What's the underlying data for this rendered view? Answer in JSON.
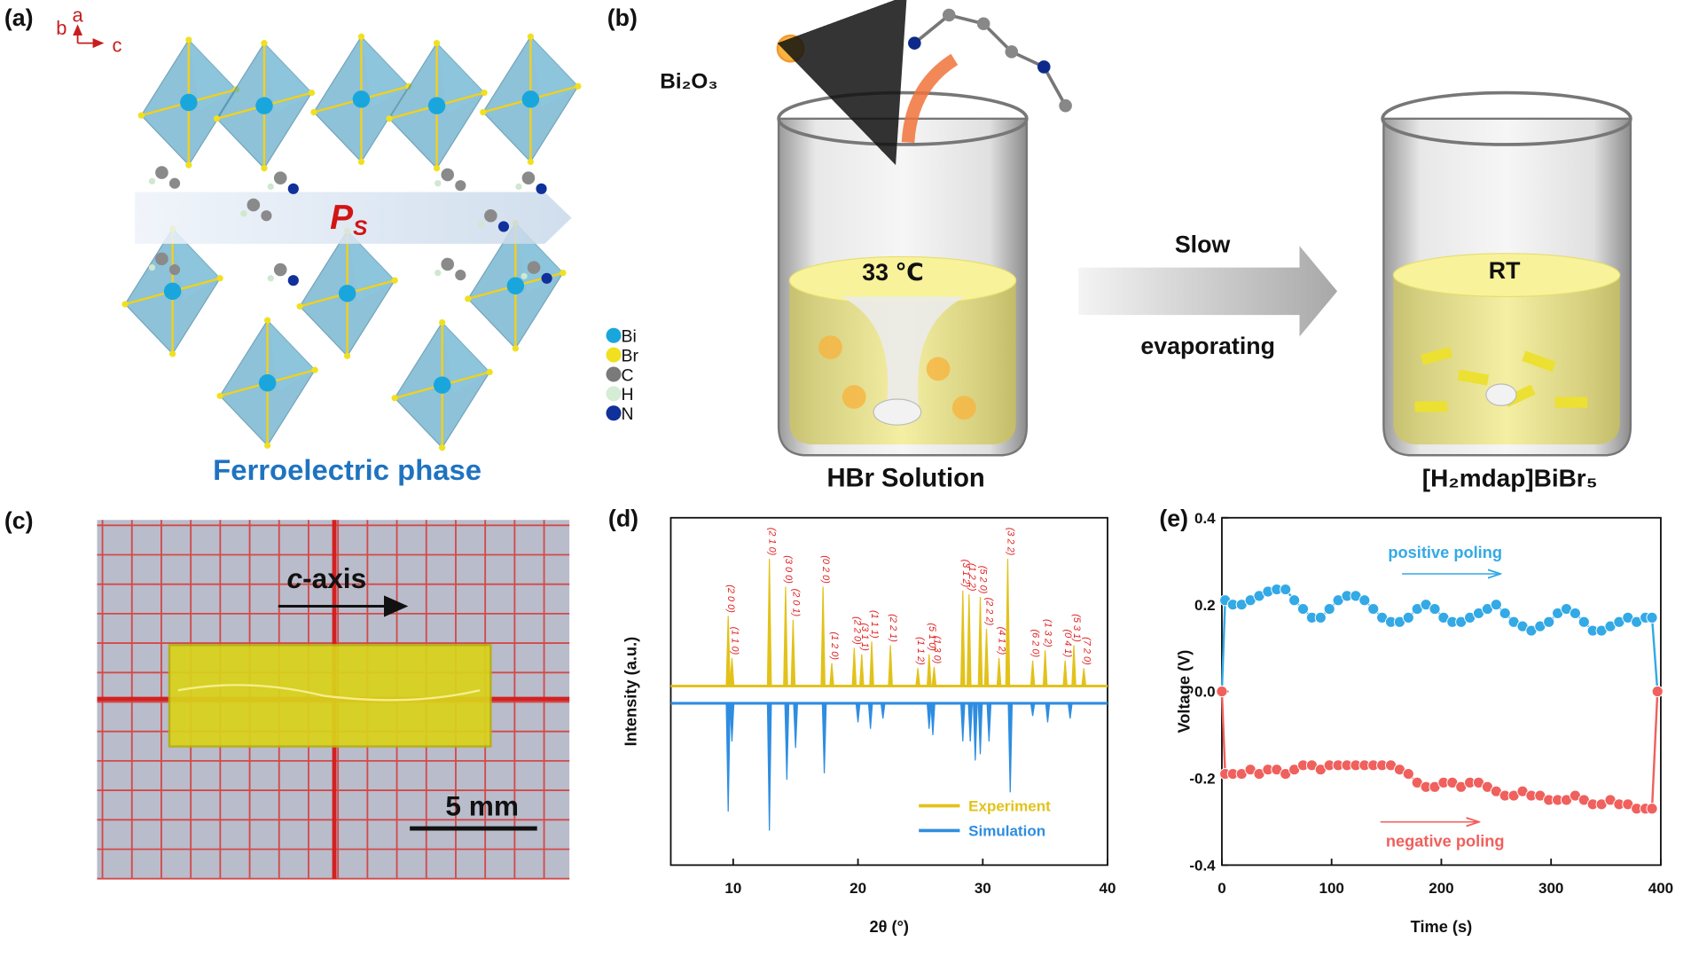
{
  "panels": {
    "a": {
      "label": "(a)",
      "axes": [
        "b",
        "a",
        "c"
      ],
      "polarization": {
        "symbol": "P",
        "subscript": "S"
      },
      "atoms": [
        "Bi",
        "Br",
        "C",
        "H",
        "N"
      ],
      "caption": "Ferroelectric phase"
    },
    "b": {
      "label": "(b)",
      "reagent": "Bi₂O₃",
      "temperature": "33 ℃",
      "solution": "HBr Solution",
      "process": [
        "Slow",
        "evaporating"
      ],
      "condition": "RT",
      "product": "[H₂mdap]BiBr₅"
    },
    "c": {
      "label": "(c)",
      "axis_label": {
        "italic": "c",
        "rest": "-axis"
      },
      "scale_bar": "5 mm"
    }
  },
  "chart_data": [
    {
      "type": "spectrum",
      "label": "(d)",
      "x_label": "2θ (°)",
      "y_label": "Intensity (a.u.)",
      "xlim": [
        5,
        40
      ],
      "xticks": [
        10,
        20,
        30,
        40
      ],
      "legend": "lower right",
      "series": [
        {
          "name": "Experiment",
          "color": "#e2c21a",
          "x": [
            9.6,
            9.9,
            12.9,
            14.2,
            14.8,
            17.2,
            17.9,
            19.7,
            20.3,
            21.1,
            22.6,
            24.8,
            25.7,
            26.1,
            28.4,
            28.9,
            29.8,
            30.3,
            31.3,
            32.0,
            34.0,
            35.0,
            36.6,
            37.3,
            38.1
          ],
          "values": [
            55,
            22,
            100,
            78,
            52,
            78,
            18,
            30,
            25,
            35,
            32,
            14,
            25,
            15,
            75,
            72,
            70,
            45,
            22,
            100,
            20,
            28,
            20,
            32,
            14
          ],
          "peak_labels": [
            "(2 0 0)",
            "(1 1 0)",
            "(2 1 0)",
            "(3 0 0)",
            "(2 0 1)",
            "(0 2 0)",
            "(1 2 0)",
            "(2 2 0)",
            "(3 1 1)",
            "(1 1 1)",
            "(2 2 1)",
            "(1 1 2)",
            "(5 1 0)",
            "(1 3 0)",
            "(3 1 2)",
            "(1 2 2)",
            "(5 2 0)",
            "(2 2 2)",
            "(4 1 2)",
            "(3 2 2)",
            "(6 2 0)",
            "(1 3 2)",
            "(0 4 1)",
            "(5 3 1)",
            "(7 2 0)"
          ]
        },
        {
          "name": "Simulation",
          "color": "#2e8de0",
          "inverted": true,
          "x": [
            9.6,
            9.9,
            12.9,
            14.3,
            15.0,
            17.3,
            20.0,
            21.0,
            22.0,
            25.7,
            26.0,
            28.4,
            29.0,
            29.4,
            29.8,
            30.5,
            32.2,
            34.0,
            35.2,
            37.0
          ],
          "values": [
            85,
            30,
            100,
            60,
            35,
            55,
            15,
            20,
            12,
            20,
            25,
            30,
            30,
            45,
            40,
            30,
            70,
            10,
            15,
            12
          ]
        }
      ]
    },
    {
      "type": "line",
      "label": "(e)",
      "x_label": "Time (s)",
      "y_label": "Voltage (V)",
      "xlim": [
        0,
        400
      ],
      "xticks": [
        0,
        100,
        200,
        300,
        400
      ],
      "ylim": [
        -0.4,
        0.4
      ],
      "yticks": [
        -0.4,
        -0.2,
        {
          "value": 0,
          "label": "0.0"
        },
        0.2,
        0.4
      ],
      "series": [
        {
          "name": "positive poling",
          "color": "#33a9e6",
          "x": [
            0,
            3,
            10,
            18,
            26,
            34,
            42,
            50,
            58,
            66,
            74,
            82,
            90,
            98,
            106,
            114,
            122,
            130,
            138,
            146,
            154,
            162,
            170,
            178,
            186,
            194,
            202,
            210,
            218,
            226,
            234,
            242,
            250,
            258,
            266,
            274,
            282,
            290,
            298,
            306,
            314,
            322,
            330,
            338,
            346,
            354,
            362,
            370,
            378,
            386,
            392,
            397
          ],
          "values": [
            0,
            0.21,
            0.2,
            0.2,
            0.21,
            0.22,
            0.23,
            0.235,
            0.235,
            0.21,
            0.19,
            0.17,
            0.17,
            0.19,
            0.21,
            0.22,
            0.22,
            0.21,
            0.19,
            0.17,
            0.16,
            0.16,
            0.17,
            0.19,
            0.2,
            0.19,
            0.17,
            0.16,
            0.16,
            0.17,
            0.18,
            0.19,
            0.2,
            0.18,
            0.16,
            0.15,
            0.14,
            0.15,
            0.16,
            0.18,
            0.19,
            0.18,
            0.16,
            0.14,
            0.14,
            0.15,
            0.16,
            0.17,
            0.16,
            0.17,
            0.17,
            0
          ]
        },
        {
          "name": "negative poling",
          "color": "#f0605d",
          "x": [
            0,
            3,
            10,
            18,
            26,
            34,
            42,
            50,
            58,
            66,
            74,
            82,
            90,
            98,
            106,
            114,
            122,
            130,
            138,
            146,
            154,
            162,
            170,
            178,
            186,
            194,
            202,
            210,
            218,
            226,
            234,
            242,
            250,
            258,
            266,
            274,
            282,
            290,
            298,
            306,
            314,
            322,
            330,
            338,
            346,
            354,
            362,
            370,
            378,
            386,
            392,
            397
          ],
          "values": [
            0,
            -0.19,
            -0.19,
            -0.19,
            -0.18,
            -0.19,
            -0.18,
            -0.18,
            -0.19,
            -0.18,
            -0.17,
            -0.17,
            -0.18,
            -0.17,
            -0.17,
            -0.17,
            -0.17,
            -0.17,
            -0.17,
            -0.17,
            -0.17,
            -0.18,
            -0.19,
            -0.21,
            -0.22,
            -0.22,
            -0.21,
            -0.21,
            -0.22,
            -0.21,
            -0.21,
            -0.22,
            -0.23,
            -0.24,
            -0.24,
            -0.23,
            -0.24,
            -0.24,
            -0.25,
            -0.25,
            -0.25,
            -0.24,
            -0.25,
            -0.26,
            -0.26,
            -0.25,
            -0.26,
            -0.26,
            -0.27,
            -0.27,
            -0.27,
            0
          ]
        }
      ]
    }
  ]
}
